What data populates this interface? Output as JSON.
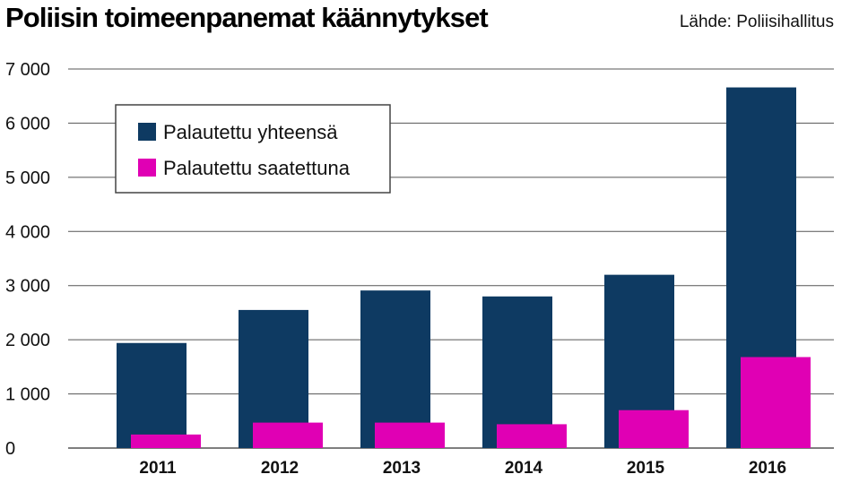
{
  "title": "Poliisin toimeenpanemat käännytykset",
  "source": "Lähde: Poliisihallitus",
  "colors": {
    "series1": "#0e3a62",
    "series2": "#e000b4",
    "grid": "#555555",
    "legend_border": "#444444"
  },
  "chart_data": {
    "type": "bar",
    "categories": [
      "2011",
      "2012",
      "2013",
      "2014",
      "2015",
      "2016"
    ],
    "series": [
      {
        "name": "Palautettu yhteensä",
        "values": [
          1940,
          2550,
          2910,
          2800,
          3200,
          6660
        ]
      },
      {
        "name": "Palautettu saatettuna",
        "values": [
          250,
          470,
          470,
          440,
          700,
          1680
        ]
      }
    ],
    "ylim": [
      0,
      7000
    ],
    "yticks": [
      0,
      1000,
      2000,
      3000,
      4000,
      5000,
      6000,
      7000
    ],
    "ytick_labels": [
      "0",
      "1 000",
      "2 000",
      "3 000",
      "4 000",
      "5 000",
      "6 000",
      "7 000"
    ],
    "xlabel": "",
    "ylabel": "",
    "grid": true,
    "legend_position": "top-left"
  }
}
